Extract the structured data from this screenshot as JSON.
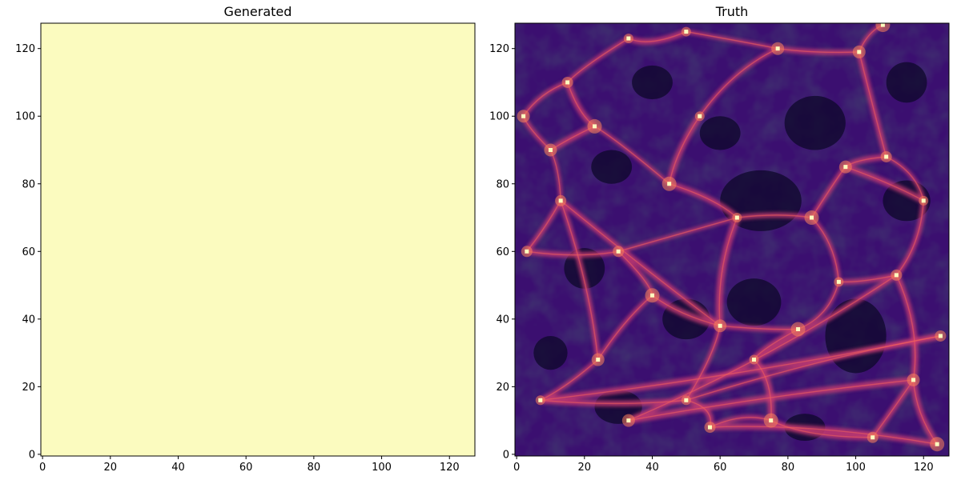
{
  "chart_data": [
    {
      "type": "heatmap",
      "title": "Generated",
      "xlabel": "",
      "ylabel": "",
      "colormap": "magma",
      "xlim": [
        -0.5,
        127.5
      ],
      "ylim": [
        127.5,
        -0.5
      ],
      "x_ticks": [
        0,
        20,
        40,
        60,
        80,
        100,
        120
      ],
      "y_ticks": [
        0,
        20,
        40,
        60,
        80,
        100,
        120
      ],
      "tick_labels_x": [
        "0",
        "20",
        "40",
        "60",
        "80",
        "100",
        "120"
      ],
      "tick_labels_y": [
        "0",
        "20",
        "40",
        "60",
        "80",
        "100",
        "120"
      ],
      "fill_color": "#fbfbbf",
      "description_of_values": "uniform field"
    },
    {
      "type": "heatmap",
      "title": "Truth",
      "xlabel": "",
      "ylabel": "",
      "colormap": "magma",
      "xlim": [
        -0.5,
        127.5
      ],
      "ylim": [
        127.5,
        -0.5
      ],
      "x_ticks": [
        0,
        20,
        40,
        60,
        80,
        100,
        120
      ],
      "y_ticks": [
        0,
        20,
        40,
        60,
        80,
        100,
        120
      ],
      "tick_labels_x": [
        "0",
        "20",
        "40",
        "60",
        "80",
        "100",
        "120"
      ],
      "tick_labels_y": [
        "0",
        "20",
        "40",
        "60",
        "80",
        "100",
        "120"
      ],
      "colors": {
        "void": "#0d0829",
        "background": "#3b0f70",
        "filament": "#c83c72",
        "node": "#fcfdbf"
      }
    }
  ]
}
